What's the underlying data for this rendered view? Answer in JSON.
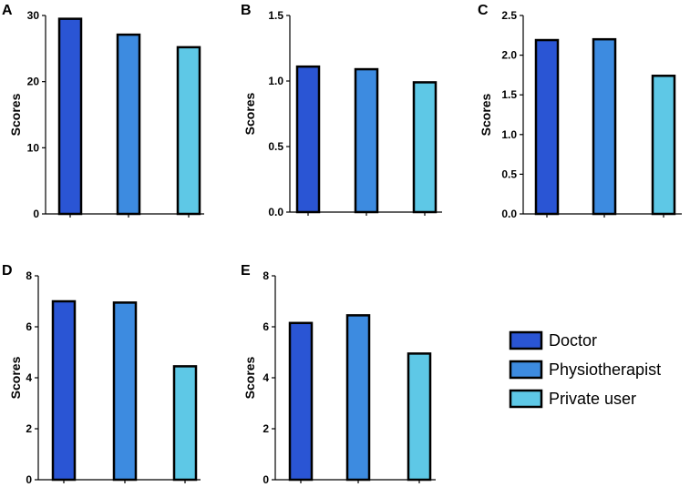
{
  "chart_data": [
    {
      "type": "bar",
      "panel": "A",
      "categories": [
        "Doctor",
        "Physiotherapist",
        "Private user"
      ],
      "values": [
        29.5,
        27.1,
        25.2
      ],
      "ylabel": "Scores",
      "ylim": [
        0,
        30
      ],
      "yticks": [
        "0",
        "10",
        "20",
        "30"
      ]
    },
    {
      "type": "bar",
      "panel": "B",
      "categories": [
        "Doctor",
        "Physiotherapist",
        "Private user"
      ],
      "values": [
        1.11,
        1.09,
        0.99
      ],
      "ylabel": "Scores",
      "ylim": [
        0,
        1.5
      ],
      "yticks": [
        "0.0",
        "0.5",
        "1.0",
        "1.5"
      ]
    },
    {
      "type": "bar",
      "panel": "C",
      "categories": [
        "Doctor",
        "Physiotherapist",
        "Private user"
      ],
      "values": [
        2.19,
        2.2,
        1.74
      ],
      "ylabel": "Scores",
      "ylim": [
        0,
        2.5
      ],
      "yticks": [
        "0.0",
        "0.5",
        "1.0",
        "1.5",
        "2.0",
        "2.5"
      ]
    },
    {
      "type": "bar",
      "panel": "D",
      "categories": [
        "Doctor",
        "Physiotherapist",
        "Private user"
      ],
      "values": [
        7.0,
        6.95,
        4.45
      ],
      "ylabel": "Scores",
      "ylim": [
        0,
        8
      ],
      "yticks": [
        "0",
        "2",
        "4",
        "6",
        "8"
      ]
    },
    {
      "type": "bar",
      "panel": "E",
      "categories": [
        "Doctor",
        "Physiotherapist",
        "Private user"
      ],
      "values": [
        6.15,
        6.45,
        4.95
      ],
      "ylabel": "Scores",
      "ylim": [
        0,
        8
      ],
      "yticks": [
        "0",
        "2",
        "4",
        "6",
        "8"
      ]
    }
  ],
  "legend": [
    {
      "label": "Doctor",
      "color": "#2a55d4"
    },
    {
      "label": "Physiotherapist",
      "color": "#3d8be0"
    },
    {
      "label": "Private user",
      "color": "#5ec8e6"
    }
  ]
}
